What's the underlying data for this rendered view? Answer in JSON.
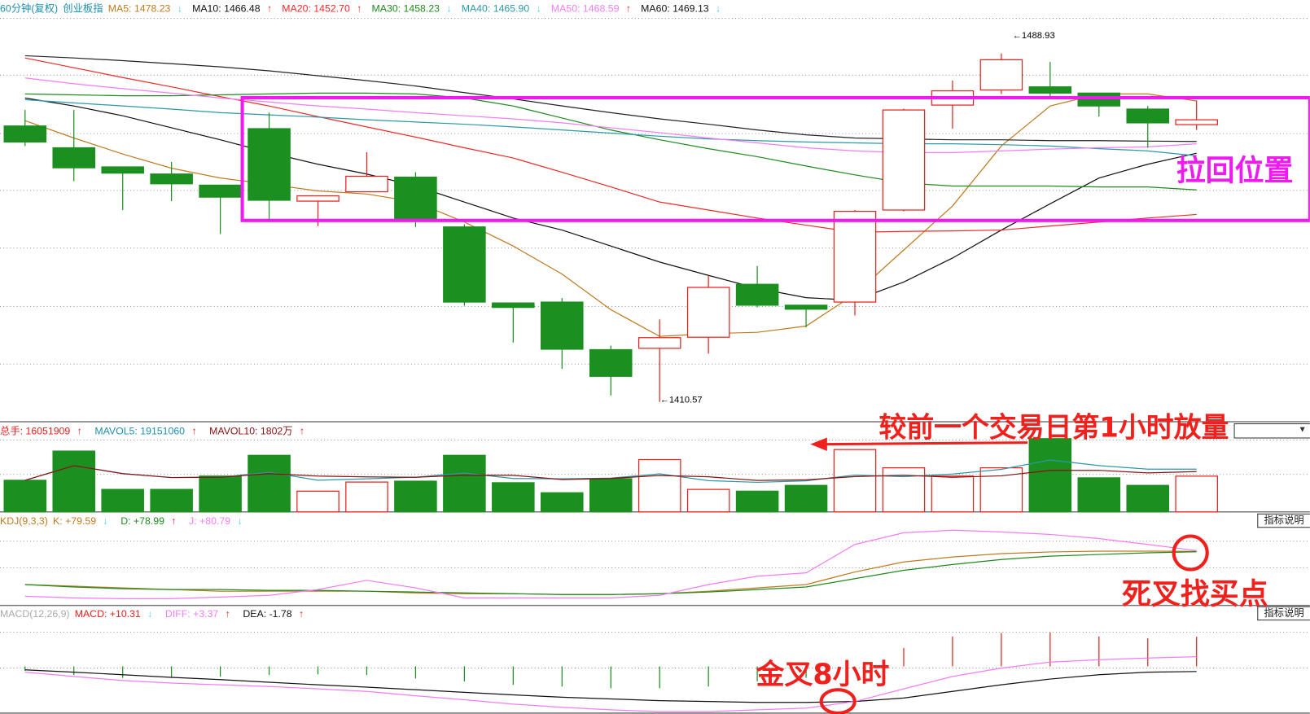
{
  "header": {
    "period": "60分钟(复权)",
    "symbol": "创业板指",
    "ma": [
      {
        "label": "MA5: 1478.23",
        "dir": "down",
        "color": "#c07a1e"
      },
      {
        "label": "MA10: 1466.48",
        "dir": "up",
        "color": "#111111"
      },
      {
        "label": "MA20: 1452.70",
        "dir": "up",
        "color": "#f02a2a"
      },
      {
        "label": "MA30: 1458.23",
        "dir": "down",
        "color": "#1e8a1e"
      },
      {
        "label": "MA40: 1465.90",
        "dir": "down",
        "color": "#2a9aa8"
      },
      {
        "label": "MA50: 1468.59",
        "dir": "up",
        "color": "#f47cf4"
      },
      {
        "label": "MA60: 1469.13",
        "dir": "down",
        "color": "#111111"
      }
    ]
  },
  "price_labels": {
    "high": "1488.93",
    "low": "1410.57"
  },
  "volume_header": {
    "total": {
      "label": "总手: 16051909",
      "dir": "up"
    },
    "mavol5": {
      "label": "MAVOL5: 19151060",
      "dir": "up"
    },
    "mavol10": {
      "label": "MAVOL10: 1802万",
      "dir": "up"
    }
  },
  "kdj_header": {
    "name": "KDJ(9,3,3)",
    "k": {
      "label": "K: +79.59",
      "dir": "down"
    },
    "d": {
      "label": "D: +78.99",
      "dir": "up"
    },
    "j": {
      "label": "J: +80.79",
      "dir": "down"
    },
    "button": "指标说明"
  },
  "macd_header": {
    "name": "MACD(12,26,9)",
    "macd": {
      "label": "MACD: +10.31",
      "dir": "down"
    },
    "diff": {
      "label": "DIFF: +3.37",
      "dir": "up"
    },
    "dea": {
      "label": "DEA: -1.78",
      "dir": "up"
    },
    "button": "指标说明"
  },
  "annotations": {
    "pullback": "拉回位置",
    "volume_note": "较前一个交易日第1小时放量",
    "dead_cross": "死叉找买点",
    "golden_cross": "金叉8小时"
  },
  "colors": {
    "up": "#e8201c",
    "down": "#1b8f1f",
    "annotation_magenta": "#f01af0",
    "annotation_red": "#f0201c"
  },
  "chart_data": {
    "type": "candlestick",
    "ohlc": [
      [
        1472.6,
        1476.2,
        1468.1,
        1469.0
      ],
      [
        1467.7,
        1476.2,
        1460.2,
        1463.2
      ],
      [
        1463.4,
        1463.4,
        1453.7,
        1462.0
      ],
      [
        1461.8,
        1464.5,
        1455.7,
        1459.6
      ],
      [
        1459.3,
        1459.3,
        1448.3,
        1456.6
      ],
      [
        1472.0,
        1475.6,
        1451.0,
        1455.9
      ],
      [
        1455.7,
        1456.9,
        1450.1,
        1456.9
      ],
      [
        1457.8,
        1466.7,
        1457.8,
        1461.3
      ],
      [
        1461.1,
        1462.2,
        1449.9,
        1451.4
      ],
      [
        1449.9,
        1450.5,
        1432.2,
        1433.0
      ],
      [
        1432.8,
        1432.8,
        1423.9,
        1431.8
      ],
      [
        1433.0,
        1433.9,
        1418.0,
        1422.4
      ],
      [
        1422.3,
        1423.2,
        1412.0,
        1416.3
      ],
      [
        1422.6,
        1429.1,
        1410.57,
        1425.0
      ],
      [
        1425.1,
        1439.0,
        1421.4,
        1436.3
      ],
      [
        1437.0,
        1441.1,
        1431.8,
        1432.3
      ],
      [
        1432.3,
        1432.3,
        1427.3,
        1431.4
      ],
      [
        1433.0,
        1453.7,
        1430.0,
        1453.4
      ],
      [
        1453.7,
        1476.5,
        1453.4,
        1476.2
      ],
      [
        1477.3,
        1482.8,
        1472.0,
        1480.5
      ],
      [
        1480.7,
        1488.93,
        1479.8,
        1487.5
      ],
      [
        1481.4,
        1487.0,
        1478.9,
        1480.0
      ],
      [
        1480.0,
        1480.0,
        1474.7,
        1477.1
      ],
      [
        1476.4,
        1477.1,
        1467.7,
        1473.3
      ],
      [
        1472.9,
        1478.3,
        1471.7,
        1474.0
      ]
    ],
    "ma": {
      "MA5": [
        1473.8,
        1469.9,
        1466.3,
        1463.1,
        1460.9,
        1459.5,
        1458.0,
        1457.3,
        1455.5,
        1451.0,
        1445.6,
        1439.3,
        1431.3,
        1425.3,
        1425.9,
        1426.2,
        1427.6,
        1434.8,
        1444.7,
        1454.6,
        1468.1,
        1477.1,
        1479.8,
        1479.8,
        1478.23
      ],
      "MA10": [
        1478.9,
        1477.1,
        1474.9,
        1472.2,
        1469.5,
        1466.6,
        1464.0,
        1461.8,
        1459.1,
        1455.5,
        1451.9,
        1449.2,
        1445.6,
        1442.0,
        1439.0,
        1436.1,
        1434.0,
        1433.4,
        1437.5,
        1442.9,
        1449.2,
        1455.1,
        1460.9,
        1464.0,
        1466.48
      ],
      "MA20": [
        1487.9,
        1485.7,
        1483.5,
        1481.4,
        1479.2,
        1477.1,
        1474.7,
        1472.4,
        1470.1,
        1467.7,
        1465.4,
        1462.2,
        1458.9,
        1455.5,
        1453.7,
        1451.9,
        1450.3,
        1448.7,
        1448.9,
        1449.0,
        1449.2,
        1450.1,
        1451.0,
        1451.9,
        1452.7
      ],
      "MA30": [
        1479.8,
        1479.6,
        1479.4,
        1479.4,
        1479.6,
        1479.8,
        1480.0,
        1480.0,
        1479.8,
        1478.9,
        1477.1,
        1474.4,
        1471.7,
        1469.5,
        1467.5,
        1465.7,
        1463.6,
        1461.6,
        1459.8,
        1459.1,
        1459.1,
        1459.1,
        1458.9,
        1458.9,
        1458.23
      ],
      "MA40": [
        1478.5,
        1477.8,
        1477.1,
        1476.4,
        1475.6,
        1475.1,
        1474.6,
        1474.0,
        1473.5,
        1473.0,
        1472.4,
        1471.7,
        1471.0,
        1470.3,
        1469.7,
        1469.3,
        1469.0,
        1468.8,
        1468.6,
        1468.6,
        1468.4,
        1468.1,
        1467.5,
        1467.0,
        1465.9
      ],
      "MA50": [
        1483.4,
        1482.1,
        1481.0,
        1480.0,
        1478.9,
        1478.0,
        1477.1,
        1476.4,
        1475.6,
        1474.9,
        1474.2,
        1473.3,
        1472.2,
        1471.1,
        1469.9,
        1468.8,
        1467.7,
        1467.0,
        1466.6,
        1466.6,
        1467.0,
        1467.4,
        1467.7,
        1467.9,
        1468.59
      ],
      "MA60": [
        1488.4,
        1487.9,
        1487.3,
        1486.6,
        1485.9,
        1485.0,
        1483.9,
        1482.8,
        1481.6,
        1480.1,
        1478.7,
        1477.1,
        1475.6,
        1474.2,
        1473.0,
        1471.7,
        1470.6,
        1469.9,
        1469.7,
        1469.5,
        1469.5,
        1469.3,
        1469.3,
        1469.2,
        1469.13
      ]
    },
    "price_range": [
      1406.1,
      1496.8
    ],
    "volume": [
      14200000,
      27300000,
      10100000,
      10100000,
      16100000,
      25400000,
      9300000,
      13400000,
      13800000,
      25400000,
      13100000,
      8600000,
      14900000,
      23500000,
      10100000,
      9300000,
      11900000,
      28000000,
      19800000,
      16100000,
      19800000,
      32900000,
      15300000,
      11900000,
      16051909
    ],
    "volume_range": [
      0,
      33000000
    ],
    "kdj": {
      "K": [
        30,
        27.5,
        25,
        22.5,
        20,
        20,
        20,
        20,
        17.5,
        16.3,
        16.3,
        15,
        15,
        16.3,
        20,
        25,
        30,
        48.8,
        63.8,
        71.3,
        76.3,
        78.8,
        80,
        80,
        79.59
      ],
      "D": [
        30,
        26.3,
        23.8,
        22.5,
        22.5,
        21.3,
        21.3,
        20,
        18.8,
        17.5,
        16.3,
        15,
        15,
        16.3,
        18.8,
        22.5,
        26.3,
        38.8,
        51.3,
        60,
        67.5,
        72.5,
        75,
        77.5,
        78.99
      ],
      "J": [
        12.5,
        10,
        8.8,
        8.8,
        11.3,
        13.8,
        22.5,
        36.3,
        25,
        10,
        10,
        10,
        10,
        13.8,
        30,
        42.5,
        47.5,
        90,
        107.5,
        111.3,
        108.8,
        105,
        98.8,
        90,
        80.79
      ]
    },
    "macd": {
      "DIFF": [
        -2.0,
        -3.5,
        -4.9,
        -5.8,
        -6.4,
        -7.0,
        -7.8,
        -8.7,
        -10.2,
        -11.6,
        -13.1,
        -14.2,
        -15.1,
        -15.7,
        -15.7,
        -15.1,
        -14.5,
        -12.2,
        -7.8,
        -3.5,
        -0.6,
        1.5,
        2.3,
        2.9,
        3.37
      ],
      "DEA": [
        -1.2,
        -2.0,
        -2.9,
        -3.8,
        -4.6,
        -5.5,
        -6.4,
        -7.2,
        -8.1,
        -9.0,
        -9.9,
        -10.7,
        -11.3,
        -11.9,
        -12.2,
        -12.5,
        -12.5,
        -12.2,
        -11.0,
        -8.7,
        -6.4,
        -4.4,
        -2.9,
        -2.0,
        -1.78
      ]
    }
  }
}
